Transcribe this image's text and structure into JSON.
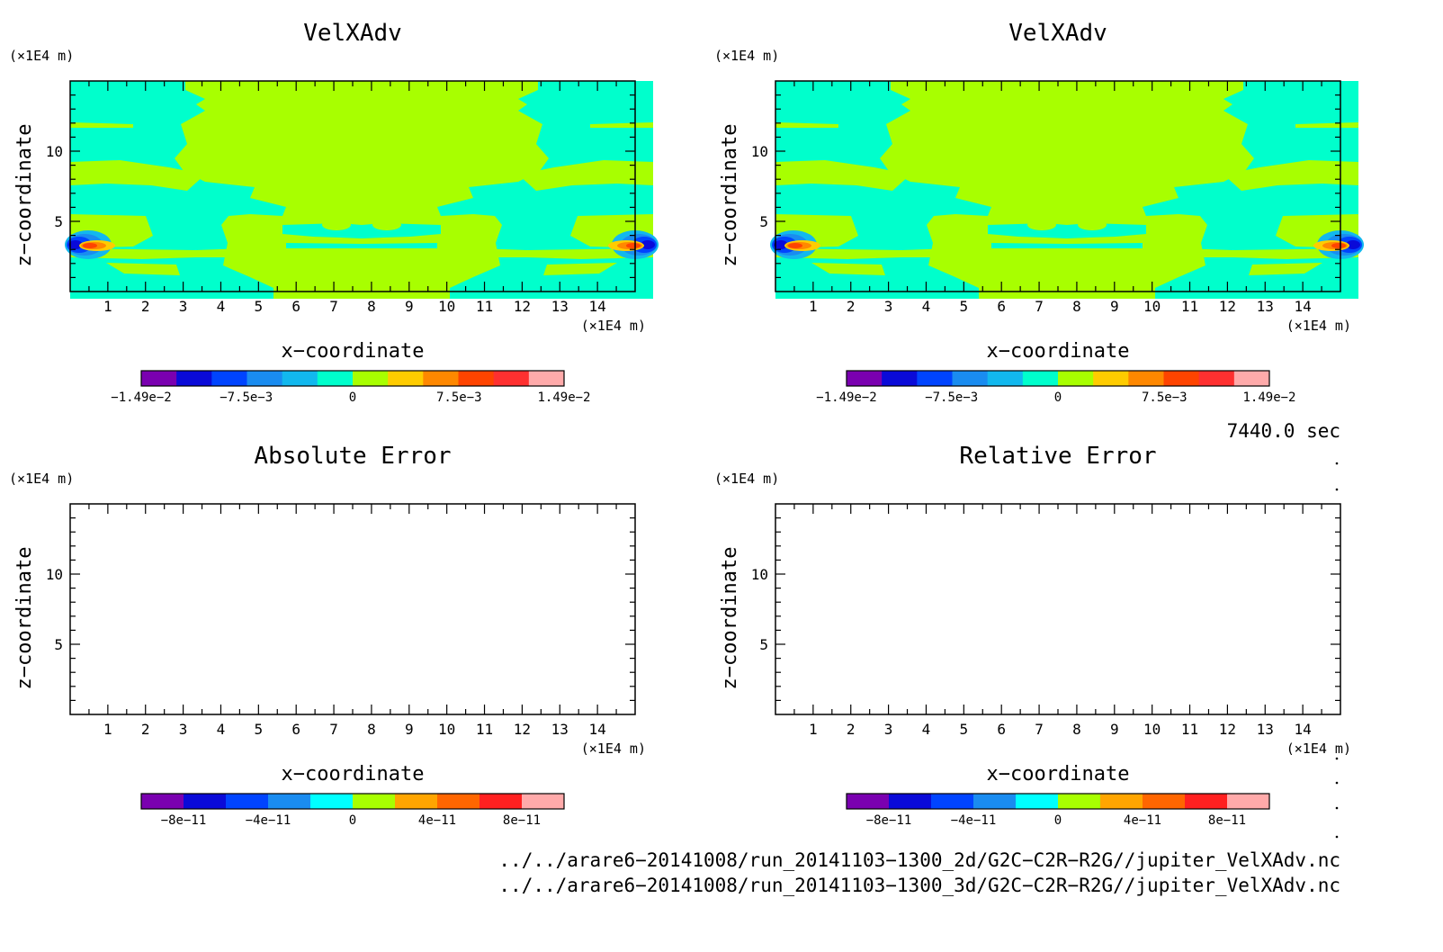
{
  "chart_data": [
    {
      "type": "heatmap",
      "title": "VelXAdv",
      "xlabel": "x−coordinate",
      "ylabel": "z−coordinate",
      "x_unit": "(×1E4 m)",
      "y_unit": "(×1E4 m)",
      "xlim": [
        0,
        15
      ],
      "ylim": [
        0,
        15
      ],
      "x_ticks": [
        "1",
        "2",
        "3",
        "4",
        "5",
        "6",
        "7",
        "8",
        "9",
        "10",
        "11",
        "12",
        "13",
        "14"
      ],
      "y_ticks": [
        "5",
        "10"
      ],
      "colorbar": {
        "range": [
          -0.0149,
          0.0149
        ],
        "labels": [
          "−1.49e−2",
          "−7.5e−3",
          "0",
          "7.5e−3",
          "1.49e−2"
        ],
        "colors": [
          "#7a00b0",
          "#0a0ad8",
          "#0044ff",
          "#1a8cf0",
          "#12b8ee",
          "#00ffcc",
          "#a8ff00",
          "#ffcc00",
          "#ff8800",
          "#ff4400",
          "#ff3030",
          "#ffaaaa"
        ]
      }
    },
    {
      "type": "heatmap",
      "title": "VelXAdv",
      "xlabel": "x−coordinate",
      "ylabel": "z−coordinate",
      "x_unit": "(×1E4 m)",
      "y_unit": "(×1E4 m)",
      "xlim": [
        0,
        15
      ],
      "ylim": [
        0,
        15
      ],
      "x_ticks": [
        "1",
        "2",
        "3",
        "4",
        "5",
        "6",
        "7",
        "8",
        "9",
        "10",
        "11",
        "12",
        "13",
        "14"
      ],
      "y_ticks": [
        "5",
        "10"
      ],
      "colorbar": {
        "range": [
          -0.0149,
          0.0149
        ],
        "labels": [
          "−1.49e−2",
          "−7.5e−3",
          "0",
          "7.5e−3",
          "1.49e−2"
        ],
        "colors": [
          "#7a00b0",
          "#0a0ad8",
          "#0044ff",
          "#1a8cf0",
          "#12b8ee",
          "#00ffcc",
          "#a8ff00",
          "#ffcc00",
          "#ff8800",
          "#ff4400",
          "#ff3030",
          "#ffaaaa"
        ]
      }
    },
    {
      "type": "heatmap",
      "title": "Absolute Error",
      "xlabel": "x−coordinate",
      "ylabel": "z−coordinate",
      "x_unit": "(×1E4 m)",
      "y_unit": "(×1E4 m)",
      "xlim": [
        0,
        15
      ],
      "ylim": [
        0,
        15
      ],
      "x_ticks": [
        "1",
        "2",
        "3",
        "4",
        "5",
        "6",
        "7",
        "8",
        "9",
        "10",
        "11",
        "12",
        "13",
        "14"
      ],
      "y_ticks": [
        "5",
        "10"
      ],
      "values": "empty",
      "colorbar": {
        "range": [
          -1e-10,
          1e-10
        ],
        "labels": [
          "−8e−11",
          "−4e−11",
          "0",
          "4e−11",
          "8e−11"
        ],
        "colors": [
          "#7a00b0",
          "#0a0ad8",
          "#0044ff",
          "#1a8cf0",
          "#00ffff",
          "#a8ff00",
          "#ffa500",
          "#ff6600",
          "#ff2020",
          "#ffaaaa"
        ]
      }
    },
    {
      "type": "heatmap",
      "title": "Relative Error",
      "xlabel": "x−coordinate",
      "ylabel": "z−coordinate",
      "x_unit": "(×1E4 m)",
      "y_unit": "(×1E4 m)",
      "xlim": [
        0,
        15
      ],
      "ylim": [
        0,
        15
      ],
      "x_ticks": [
        "1",
        "2",
        "3",
        "4",
        "5",
        "6",
        "7",
        "8",
        "9",
        "10",
        "11",
        "12",
        "13",
        "14"
      ],
      "y_ticks": [
        "5",
        "10"
      ],
      "values": "empty",
      "colorbar": {
        "range": [
          -1e-10,
          1e-10
        ],
        "labels": [
          "−8e−11",
          "−4e−11",
          "0",
          "4e−11",
          "8e−11"
        ],
        "colors": [
          "#7a00b0",
          "#0a0ad8",
          "#0044ff",
          "#1a8cf0",
          "#00ffff",
          "#a8ff00",
          "#ffa500",
          "#ff6600",
          "#ff2020",
          "#ffaaaa"
        ]
      }
    }
  ],
  "time_label": "7440.0 sec",
  "source_files": [
    "../../arare6−20141008/run_20141103−1300_2d/G2C−C2R−R2G//jupiter_VelXAdv.nc",
    "../../arare6−20141008/run_20141103−1300_3d/G2C−C2R−R2G//jupiter_VelXAdv.nc"
  ],
  "colors": {
    "cyan": "#00ffcc",
    "lime": "#a8ff00"
  }
}
